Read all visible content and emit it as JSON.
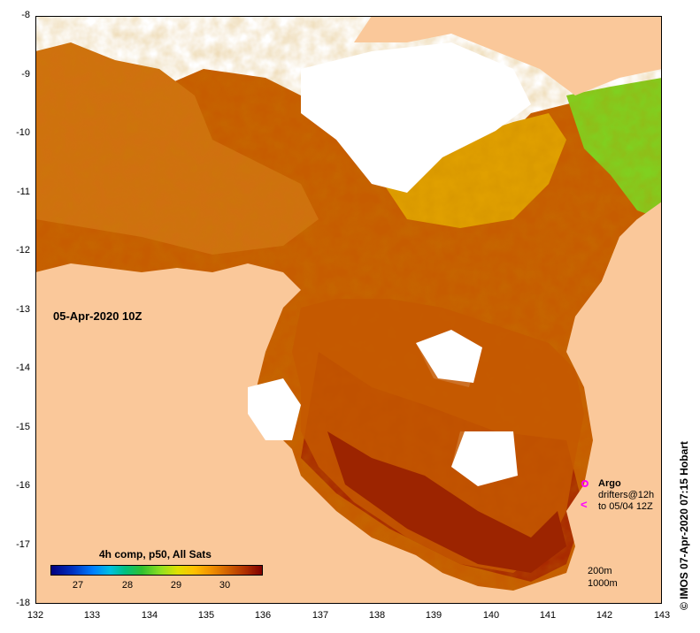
{
  "map": {
    "title_date": "05-Apr-2020 10Z",
    "lat_ticks": [
      "-8",
      "-9",
      "-10",
      "-11",
      "-12",
      "-13",
      "-14",
      "-15",
      "-16",
      "-17",
      "-18"
    ],
    "lon_ticks": [
      "132",
      "133",
      "134",
      "135",
      "136",
      "137",
      "138",
      "139",
      "140",
      "141",
      "142",
      "143"
    ],
    "colors": {
      "land": "#fac89a",
      "no_data": "#ffffff",
      "sst_warm": "#c85a00",
      "sst_hot": "#a02800",
      "sst_cool": "#e0a000"
    }
  },
  "legend": {
    "title": "4h comp, p50, All Sats",
    "scale_labels": [
      "27",
      "28",
      "29",
      "30"
    ]
  },
  "markers": {
    "argo_label": "Argo",
    "drifters_label": "drifters@12h",
    "drifters_range": "to 05/04 12Z",
    "contour_200": "200m",
    "contour_1000": "1000m"
  },
  "credit": "© IMOS 07-Apr-2020 07:15 Hobart"
}
